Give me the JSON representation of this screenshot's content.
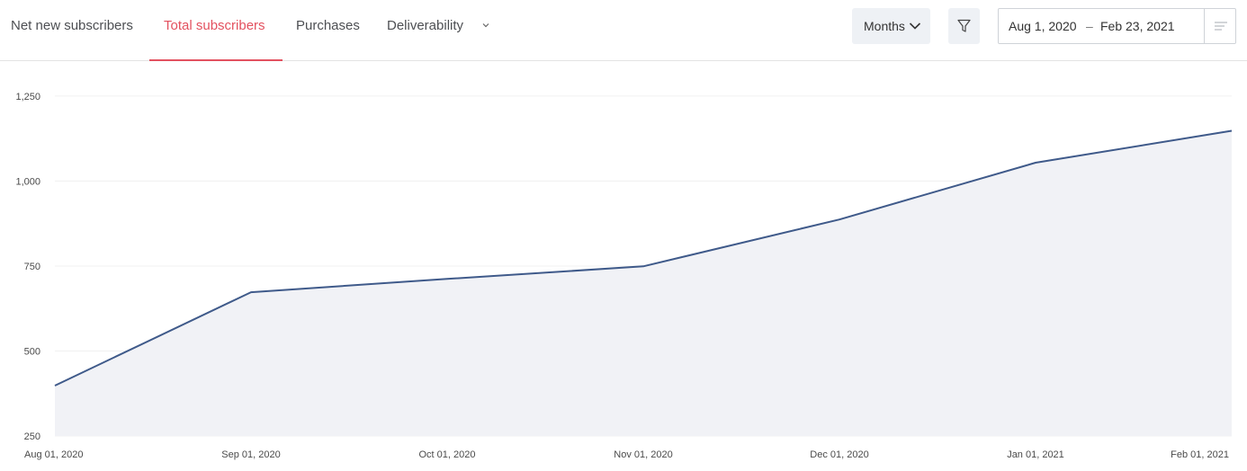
{
  "tabs": [
    {
      "label": "Net new subscribers",
      "active": false
    },
    {
      "label": "Total subscribers",
      "active": true
    },
    {
      "label": "Purchases",
      "active": false
    },
    {
      "label": "Deliverability",
      "active": false
    }
  ],
  "toolbar": {
    "granularity_label": "Months",
    "date_from": "Aug 1, 2020",
    "date_separator": "–",
    "date_to": "Feb 23, 2021"
  },
  "colors": {
    "accent": "#e3515f",
    "line": "#3f5a8a",
    "area_fill": "#f1f2f6",
    "button_bg": "#eef1f5"
  },
  "icons": {
    "tab_more": "chevron-down-icon",
    "granularity": "chevron-down-icon",
    "filter": "filter-icon",
    "date_menu": "menu-lines-icon"
  },
  "chart_data": {
    "type": "area",
    "x": [
      "Aug 01, 2020",
      "Sep 01, 2020",
      "Oct 01, 2020",
      "Nov 01, 2020",
      "Dec 01, 2020",
      "Jan 01, 2021",
      "Feb 01, 2021"
    ],
    "y_ticks": [
      "250",
      "500",
      "750",
      "1,000",
      "1,250"
    ],
    "ylim": [
      250,
      1300
    ],
    "grid": true,
    "series": [
      {
        "values": [
          398,
          673,
          712,
          749,
          887,
          1054,
          1148
        ]
      }
    ]
  }
}
